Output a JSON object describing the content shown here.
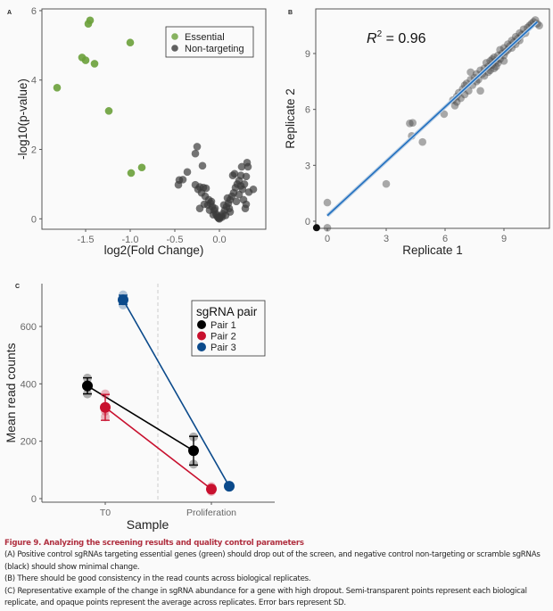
{
  "chart_data": [
    {
      "panel": "A",
      "type": "scatter",
      "xlabel": "log2(Fold Change)",
      "ylabel": "-log10(p-value)",
      "xlim": [
        -1.99,
        0.52
      ],
      "ylim": [
        -0.3,
        6.05
      ],
      "xticks": [
        "-1.5",
        "-1.0",
        "-0.5",
        "0.0"
      ],
      "xtick_values": [
        -1.5,
        -1.0,
        -0.5,
        0.0
      ],
      "yticks": [
        "0",
        "2",
        "4",
        "6"
      ],
      "ytick_values": [
        0,
        2,
        4,
        6
      ],
      "legend_position": "top-right",
      "series": [
        {
          "name": "Essential",
          "color": "#6aa03a",
          "points": [
            [
              -1.45,
              5.72
            ],
            [
              -1.47,
              5.62
            ],
            [
              -1.0,
              5.08
            ],
            [
              -1.54,
              4.65
            ],
            [
              -1.5,
              4.57
            ],
            [
              -1.4,
              4.47
            ],
            [
              -1.82,
              3.78
            ],
            [
              -1.24,
              3.11
            ],
            [
              -0.87,
              1.48
            ],
            [
              -0.99,
              1.32
            ]
          ]
        },
        {
          "name": "Non-targeting",
          "color": "#3a3a3a",
          "points": [
            [
              -0.45,
              1.12
            ],
            [
              -0.46,
              0.98
            ],
            [
              -0.41,
              1.13
            ],
            [
              -0.36,
              1.35
            ],
            [
              -0.25,
              2.08
            ],
            [
              -0.27,
              1.88
            ],
            [
              -0.19,
              1.53
            ],
            [
              -0.27,
              0.98
            ],
            [
              -0.22,
              0.92
            ],
            [
              -0.18,
              0.9
            ],
            [
              -0.15,
              0.88
            ],
            [
              -0.2,
              0.75
            ],
            [
              -0.16,
              0.65
            ],
            [
              -0.24,
              0.85
            ],
            [
              -0.12,
              0.55
            ],
            [
              -0.1,
              0.45
            ],
            [
              -0.08,
              0.35
            ],
            [
              -0.06,
              0.25
            ],
            [
              -0.04,
              0.15
            ],
            [
              -0.02,
              0.05
            ],
            [
              0,
              0
            ],
            [
              0.02,
              0.08
            ],
            [
              0.04,
              0.15
            ],
            [
              0.06,
              0.25
            ],
            [
              0.08,
              0.35
            ],
            [
              0.1,
              0.45
            ],
            [
              0.12,
              0.55
            ],
            [
              0.14,
              0.65
            ],
            [
              0.16,
              0.75
            ],
            [
              0.18,
              0.9
            ],
            [
              0.2,
              1.0
            ],
            [
              0.22,
              1.1
            ],
            [
              0.24,
              1.25
            ],
            [
              0.25,
              1.5
            ],
            [
              0.31,
              1.62
            ],
            [
              0.32,
              1.5
            ],
            [
              0.15,
              1.25
            ],
            [
              0.17,
              1.3
            ],
            [
              0.28,
              1.0
            ],
            [
              0.3,
              1.22
            ],
            [
              0.26,
              0.85
            ],
            [
              0.27,
              0.55
            ],
            [
              0.3,
              0.42
            ],
            [
              0.29,
              0.3
            ],
            [
              0.38,
              0.85
            ],
            [
              0.33,
              0.77
            ],
            [
              0.09,
              0.6
            ],
            [
              0.05,
              0.4
            ],
            [
              -0.05,
              0.3
            ],
            [
              -0.09,
              0.5
            ],
            [
              -0.13,
              0.4
            ],
            [
              -0.11,
              0.25
            ],
            [
              0.12,
              0.2
            ],
            [
              0.03,
              0.05
            ],
            [
              -0.03,
              0.1
            ],
            [
              0.22,
              0.7
            ],
            [
              0.19,
              0.5
            ],
            [
              -0.17,
              0.42
            ],
            [
              -0.22,
              0.3
            ],
            [
              0.07,
              0.1
            ],
            [
              -0.07,
              0.12
            ],
            [
              0.24,
              0.95
            ],
            [
              0.11,
              0.3
            ],
            [
              0.0,
              0.03
            ],
            [
              -0.01,
              0.02
            ]
          ]
        }
      ]
    },
    {
      "panel": "B",
      "type": "scatter",
      "xlabel": "Replicate 1",
      "ylabel": "Replicate 2",
      "annotation": {
        "base": "R",
        "sup": "2",
        "rest": " = 0.96"
      },
      "xlim": [
        -0.6,
        11.3
      ],
      "ylim": [
        -0.4,
        11.3
      ],
      "xticks": [
        "0",
        "3",
        "6",
        "9"
      ],
      "xtick_values": [
        0,
        3,
        6,
        9
      ],
      "yticks": [
        "0",
        "3",
        "6",
        "9"
      ],
      "ytick_values": [
        0,
        3,
        6,
        9
      ],
      "fit_line": {
        "color": "#1f6fc0",
        "from": [
          0,
          0.3
        ],
        "to": [
          10.7,
          10.7
        ]
      },
      "highlight_point": [
        -0.55,
        -0.35
      ],
      "points": [
        [
          0,
          1
        ],
        [
          0,
          -0.35
        ],
        [
          3,
          2
        ],
        [
          4.2,
          5.25
        ],
        [
          4.35,
          5.28
        ],
        [
          4.3,
          4.58
        ],
        [
          4.85,
          4.25
        ],
        [
          5.95,
          5.75
        ],
        [
          6.4,
          6.5
        ],
        [
          6.5,
          6.2
        ],
        [
          6.6,
          6.7
        ],
        [
          6.7,
          6.9
        ],
        [
          6.8,
          6.6
        ],
        [
          6.9,
          7.1
        ],
        [
          7.0,
          6.8
        ],
        [
          7.1,
          7.4
        ],
        [
          7.2,
          7.0
        ],
        [
          7.3,
          7.6
        ],
        [
          7.3,
          8.0
        ],
        [
          7.4,
          7.3
        ],
        [
          7.5,
          7.7
        ],
        [
          7.6,
          7.9
        ],
        [
          7.7,
          7.6
        ],
        [
          7.8,
          7.0
        ],
        [
          7.8,
          8.1
        ],
        [
          7.9,
          7.9
        ],
        [
          8.0,
          8.2
        ],
        [
          8.0,
          7.8
        ],
        [
          8.1,
          8.5
        ],
        [
          8.2,
          8.0
        ],
        [
          8.2,
          8.3
        ],
        [
          8.3,
          8.6
        ],
        [
          8.3,
          8.1
        ],
        [
          8.4,
          8.4
        ],
        [
          8.5,
          8.8
        ],
        [
          8.5,
          8.2
        ],
        [
          8.6,
          8.6
        ],
        [
          8.7,
          8.9
        ],
        [
          8.7,
          8.5
        ],
        [
          8.8,
          9.2
        ],
        [
          8.8,
          8.7
        ],
        [
          8.9,
          9.0
        ],
        [
          9.0,
          9.3
        ],
        [
          9.0,
          8.9
        ],
        [
          9.1,
          9.1
        ],
        [
          9.2,
          9.5
        ],
        [
          9.2,
          9.2
        ],
        [
          9.3,
          9.4
        ],
        [
          9.4,
          9.7
        ],
        [
          9.4,
          9.3
        ],
        [
          9.5,
          9.6
        ],
        [
          9.6,
          9.9
        ],
        [
          9.6,
          9.5
        ],
        [
          9.7,
          9.8
        ],
        [
          9.8,
          10.1
        ],
        [
          9.8,
          9.7
        ],
        [
          9.9,
          10.0
        ],
        [
          10.0,
          10.3
        ],
        [
          10.1,
          10.1
        ],
        [
          10.2,
          10.4
        ],
        [
          10.3,
          10.5
        ],
        [
          10.4,
          10.6
        ],
        [
          10.5,
          10.7
        ],
        [
          10.6,
          10.8
        ],
        [
          10.7,
          10.6
        ],
        [
          10.8,
          10.5
        ],
        [
          7.6,
          7.5
        ],
        [
          8.6,
          8.3
        ],
        [
          9.0,
          8.6
        ],
        [
          8.4,
          8.7
        ],
        [
          7.0,
          7.3
        ],
        [
          6.6,
          6.4
        ]
      ]
    },
    {
      "panel": "C",
      "type": "line",
      "xlabel": "Sample",
      "ylabel": "Mean read counts",
      "categories": [
        "T0",
        "Proliferation"
      ],
      "yticks": [
        "0",
        "200",
        "400",
        "600"
      ],
      "ytick_values": [
        0,
        200,
        400,
        600
      ],
      "ylim": [
        -20,
        740
      ],
      "legend_title": "sgRNA pair",
      "legend_position": "top-right",
      "series": [
        {
          "name": "Pair 1",
          "color": "#000000",
          "mean": [
            393,
            167
          ],
          "sd": [
            28,
            50
          ],
          "replicates": [
            [
              365,
              395,
              420
            ],
            [
              120,
              165,
              215
            ]
          ]
        },
        {
          "name": "Pair 2",
          "color": "#c8102e",
          "mean": [
            318,
            33
          ],
          "sd": [
            45,
            8
          ],
          "replicates": [
            [
              285,
              305,
              365
            ],
            [
              25,
              33,
              42
            ]
          ]
        },
        {
          "name": "Pair 3",
          "color": "#0b4a8b",
          "mean": [
            693,
            43
          ],
          "sd": [
            16,
            3
          ],
          "replicates": [
            [
              675,
              695,
              710
            ],
            [
              40,
              43,
              46
            ]
          ]
        }
      ]
    }
  ],
  "panel_labels": {
    "a": "A",
    "b": "B",
    "c": "C"
  },
  "caption": {
    "title": "Figure 9.  Analyzing the screening results and quality control parameters",
    "lines": [
      "(A) Positive control sgRNAs targeting essential genes (green) should drop out of the screen, and negative control non-targeting or scramble sgRNAs",
      "(black) should show minimal change.",
      "(B) There should be good consistency in the read counts across biological replicates.",
      "(C) Representative example of the change in sgRNA abundance for a gene with high dropout. Semi-transparent points represent each biological",
      "replicate, and opaque points represent the average across replicates. Error bars represent SD."
    ]
  }
}
